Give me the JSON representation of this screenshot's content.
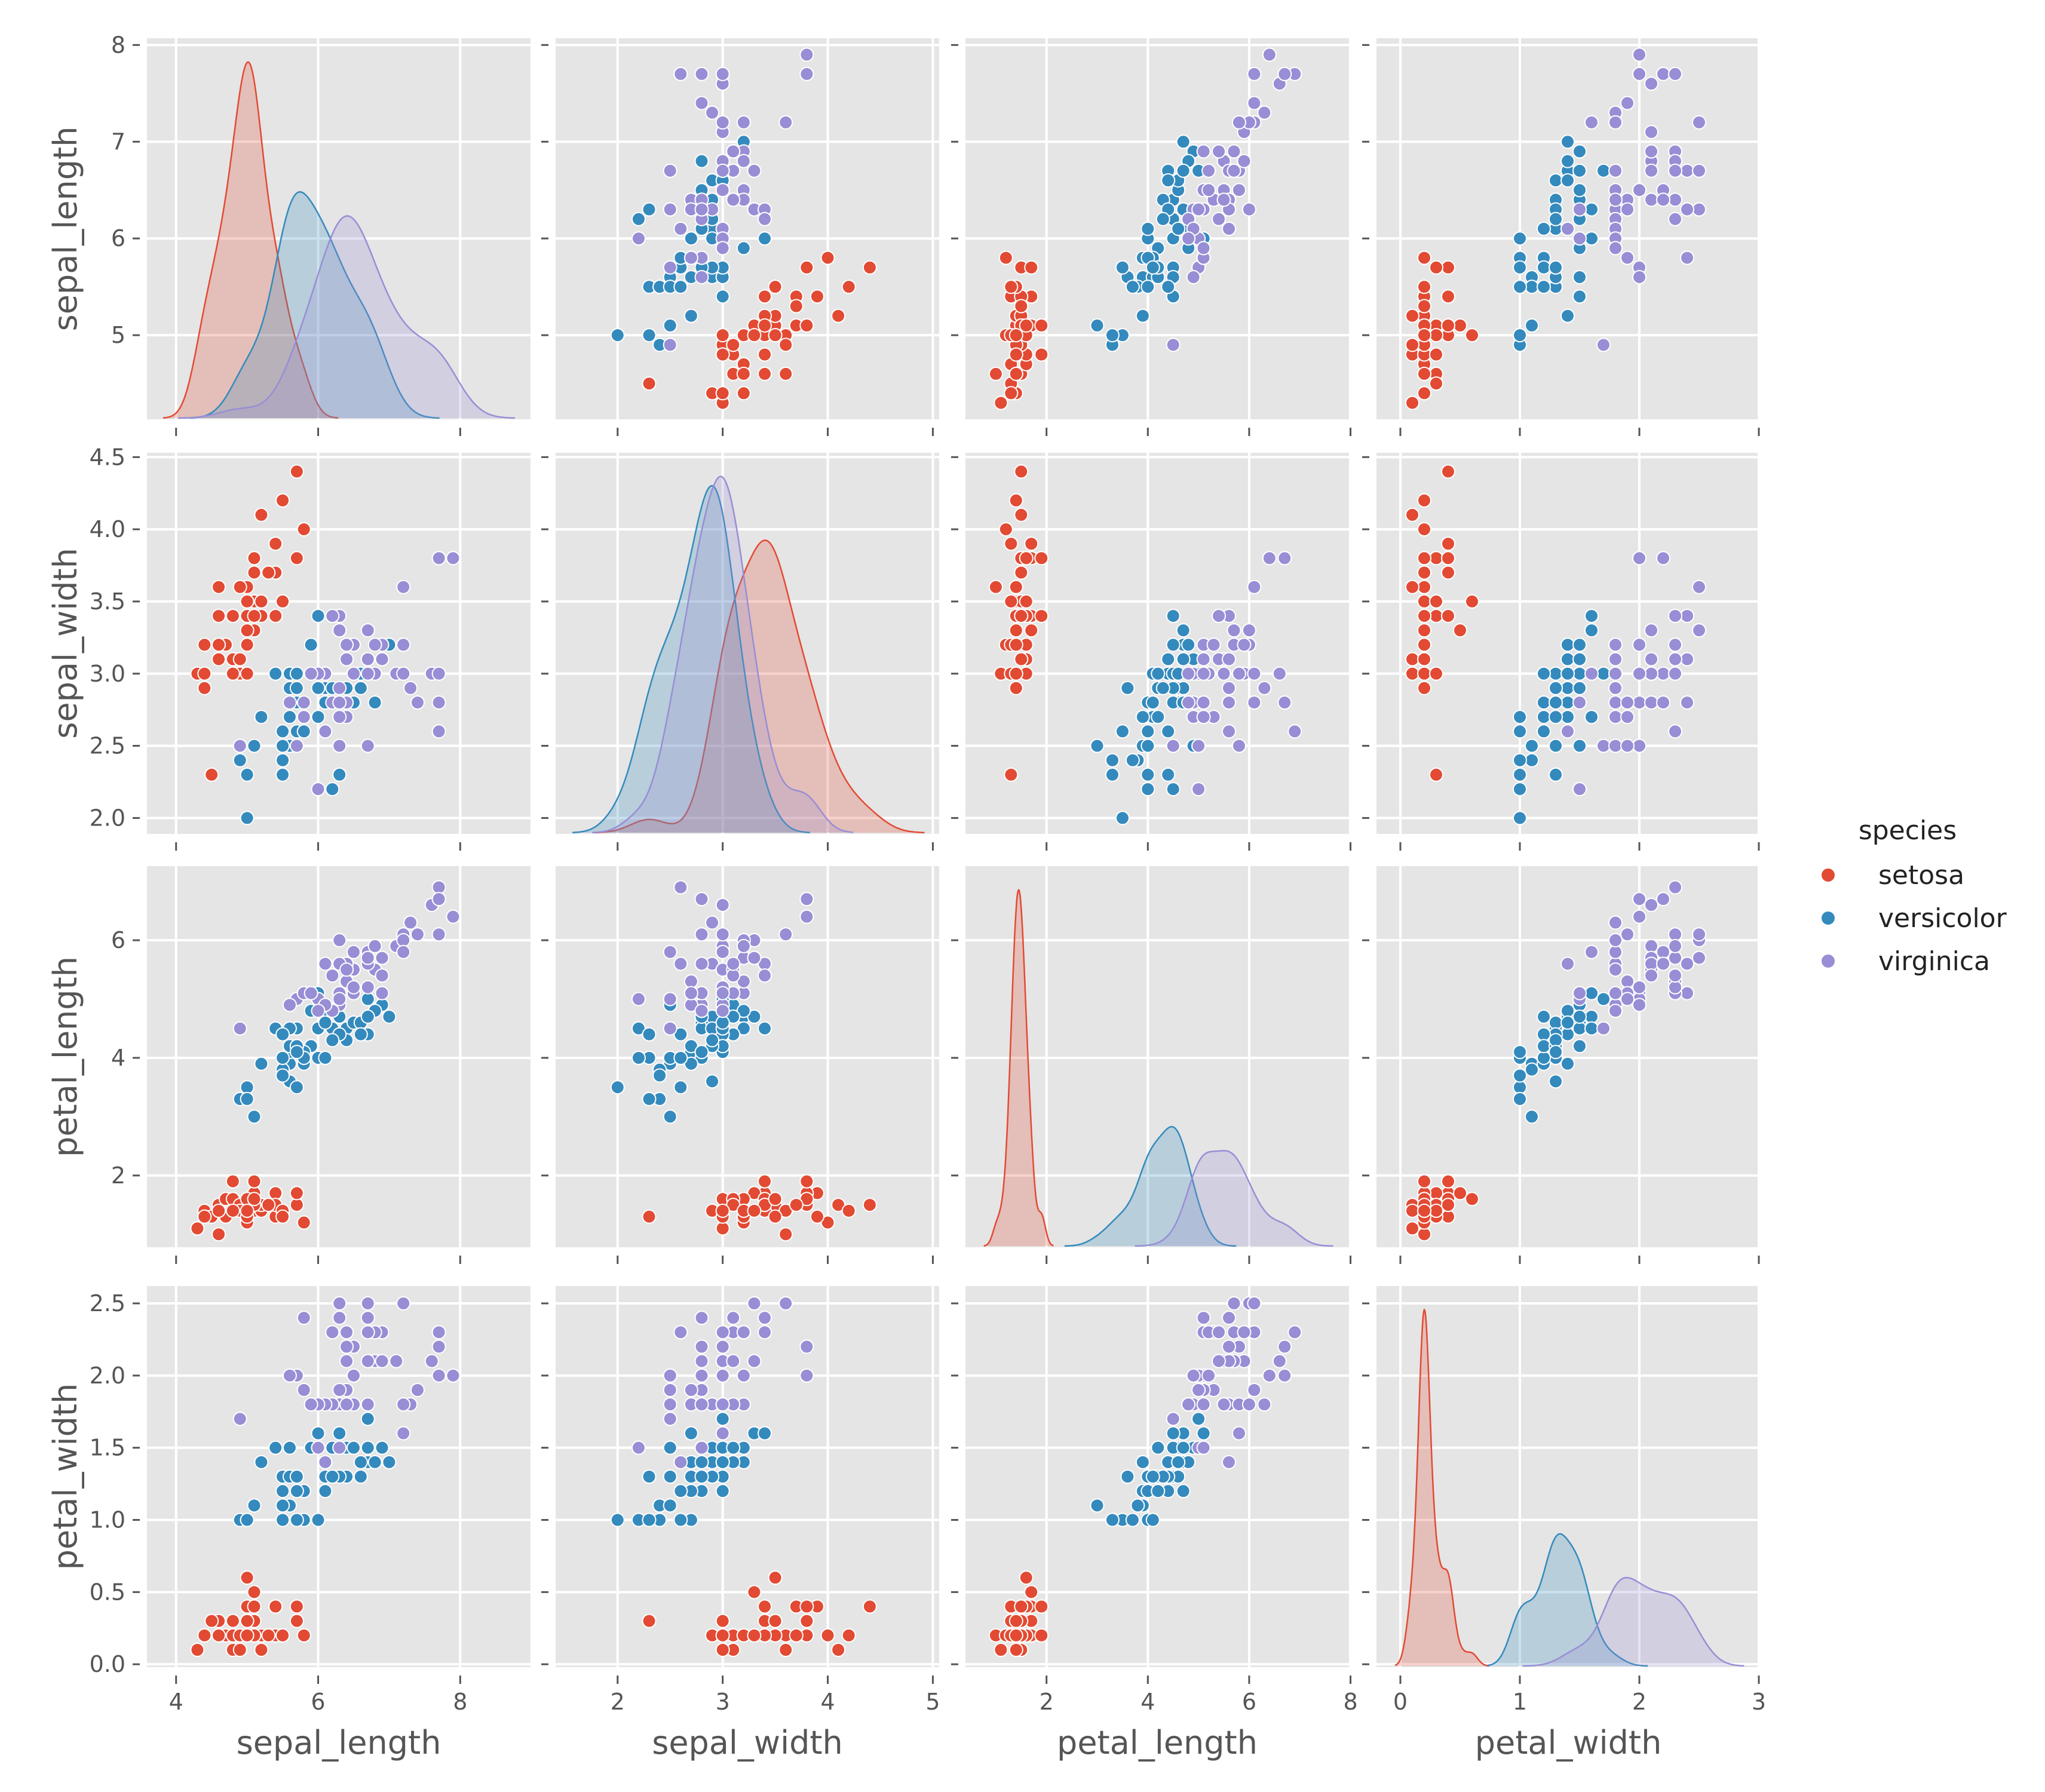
{
  "chart_data": {
    "type": "scatter",
    "title": "",
    "kind": "pairplot",
    "diag_kind": "kde",
    "grid": true,
    "variables": [
      {
        "name": "sepal_length",
        "xlim": [
          3.59,
          8.99
        ],
        "ylim": [
          4.13,
          8.07
        ],
        "xticks": [
          4,
          6,
          8
        ],
        "xtick_labels": [
          "4",
          "6",
          "8"
        ],
        "yticks": [
          5,
          6,
          7,
          8
        ],
        "ytick_labels": [
          "5",
          "6",
          "7",
          "8"
        ]
      },
      {
        "name": "sepal_width",
        "xlim": [
          1.41,
          5.06
        ],
        "ylim": [
          1.89,
          4.53
        ],
        "xticks": [
          2,
          3,
          4,
          5
        ],
        "xtick_labels": [
          "2",
          "3",
          "4",
          "5"
        ],
        "yticks": [
          2.0,
          2.5,
          3.0,
          3.5,
          4.0,
          4.5
        ],
        "ytick_labels": [
          "2.0",
          "2.5",
          "3.0",
          "3.5",
          "4.0",
          "4.5"
        ]
      },
      {
        "name": "petal_length",
        "xlim": [
          0.4,
          7.97
        ],
        "ylim": [
          0.78,
          7.26
        ],
        "xticks": [
          2,
          4,
          6,
          8
        ],
        "xtick_labels": [
          "2",
          "4",
          "6",
          "8"
        ],
        "yticks": [
          2,
          4,
          6
        ],
        "ytick_labels": [
          "2",
          "4",
          "6"
        ]
      },
      {
        "name": "petal_width",
        "xlim": [
          -0.2,
          3.01
        ],
        "ylim": [
          -0.02,
          2.62
        ],
        "xticks": [
          0,
          1,
          2,
          3
        ],
        "xtick_labels": [
          "0",
          "1",
          "2",
          "3"
        ],
        "yticks": [
          0.0,
          0.5,
          1.0,
          1.5,
          2.0,
          2.5
        ],
        "ytick_labels": [
          "0.0",
          "0.5",
          "1.0",
          "1.5",
          "2.0",
          "2.5"
        ]
      }
    ],
    "legend": {
      "title": "species",
      "placement": "right",
      "entries": [
        {
          "label": "setosa",
          "color": "#E24A33"
        },
        {
          "label": "versicolor",
          "color": "#348ABD"
        },
        {
          "label": "virginica",
          "color": "#988ED5"
        }
      ]
    },
    "series": [
      {
        "name": "setosa",
        "points": [
          [
            5.1,
            3.5,
            1.4,
            0.2
          ],
          [
            4.9,
            3.0,
            1.4,
            0.2
          ],
          [
            4.7,
            3.2,
            1.3,
            0.2
          ],
          [
            4.6,
            3.1,
            1.5,
            0.2
          ],
          [
            5.0,
            3.6,
            1.4,
            0.2
          ],
          [
            5.4,
            3.9,
            1.7,
            0.4
          ],
          [
            4.6,
            3.4,
            1.4,
            0.3
          ],
          [
            5.0,
            3.4,
            1.5,
            0.2
          ],
          [
            4.4,
            2.9,
            1.4,
            0.2
          ],
          [
            4.9,
            3.1,
            1.5,
            0.1
          ],
          [
            5.4,
            3.7,
            1.5,
            0.2
          ],
          [
            4.8,
            3.4,
            1.6,
            0.2
          ],
          [
            4.8,
            3.0,
            1.4,
            0.1
          ],
          [
            4.3,
            3.0,
            1.1,
            0.1
          ],
          [
            5.8,
            4.0,
            1.2,
            0.2
          ],
          [
            5.7,
            4.4,
            1.5,
            0.4
          ],
          [
            5.4,
            3.9,
            1.3,
            0.4
          ],
          [
            5.1,
            3.5,
            1.4,
            0.3
          ],
          [
            5.7,
            3.8,
            1.7,
            0.3
          ],
          [
            5.1,
            3.8,
            1.5,
            0.3
          ],
          [
            5.4,
            3.4,
            1.7,
            0.2
          ],
          [
            5.1,
            3.7,
            1.5,
            0.4
          ],
          [
            4.6,
            3.6,
            1.0,
            0.2
          ],
          [
            5.1,
            3.3,
            1.7,
            0.5
          ],
          [
            4.8,
            3.4,
            1.9,
            0.2
          ],
          [
            5.0,
            3.0,
            1.6,
            0.2
          ],
          [
            5.0,
            3.4,
            1.6,
            0.4
          ],
          [
            5.2,
            3.5,
            1.5,
            0.2
          ],
          [
            5.2,
            3.4,
            1.4,
            0.2
          ],
          [
            4.7,
            3.2,
            1.6,
            0.2
          ],
          [
            4.8,
            3.1,
            1.6,
            0.2
          ],
          [
            5.4,
            3.4,
            1.5,
            0.4
          ],
          [
            5.2,
            4.1,
            1.5,
            0.1
          ],
          [
            5.5,
            4.2,
            1.4,
            0.2
          ],
          [
            4.9,
            3.1,
            1.5,
            0.2
          ],
          [
            5.0,
            3.2,
            1.2,
            0.2
          ],
          [
            5.5,
            3.5,
            1.3,
            0.2
          ],
          [
            4.9,
            3.6,
            1.4,
            0.1
          ],
          [
            4.4,
            3.0,
            1.3,
            0.2
          ],
          [
            5.1,
            3.4,
            1.5,
            0.2
          ],
          [
            5.0,
            3.5,
            1.3,
            0.3
          ],
          [
            4.5,
            2.3,
            1.3,
            0.3
          ],
          [
            4.4,
            3.2,
            1.3,
            0.2
          ],
          [
            5.0,
            3.5,
            1.6,
            0.6
          ],
          [
            5.1,
            3.8,
            1.9,
            0.4
          ],
          [
            4.8,
            3.0,
            1.4,
            0.3
          ],
          [
            5.1,
            3.8,
            1.6,
            0.2
          ],
          [
            4.6,
            3.2,
            1.4,
            0.2
          ],
          [
            5.3,
            3.7,
            1.5,
            0.2
          ],
          [
            5.0,
            3.3,
            1.4,
            0.2
          ]
        ]
      },
      {
        "name": "versicolor",
        "points": [
          [
            7.0,
            3.2,
            4.7,
            1.4
          ],
          [
            6.4,
            3.2,
            4.5,
            1.5
          ],
          [
            6.9,
            3.1,
            4.9,
            1.5
          ],
          [
            5.5,
            2.3,
            4.0,
            1.3
          ],
          [
            6.5,
            2.8,
            4.6,
            1.5
          ],
          [
            5.7,
            2.8,
            4.5,
            1.3
          ],
          [
            6.3,
            3.3,
            4.7,
            1.6
          ],
          [
            4.9,
            2.4,
            3.3,
            1.0
          ],
          [
            6.6,
            2.9,
            4.6,
            1.3
          ],
          [
            5.2,
            2.7,
            3.9,
            1.4
          ],
          [
            5.0,
            2.0,
            3.5,
            1.0
          ],
          [
            5.9,
            3.0,
            4.2,
            1.5
          ],
          [
            6.0,
            2.2,
            4.0,
            1.0
          ],
          [
            6.1,
            2.9,
            4.7,
            1.4
          ],
          [
            5.6,
            2.9,
            3.6,
            1.3
          ],
          [
            6.7,
            3.1,
            4.4,
            1.4
          ],
          [
            5.6,
            3.0,
            4.5,
            1.5
          ],
          [
            5.8,
            2.7,
            4.1,
            1.0
          ],
          [
            6.2,
            2.2,
            4.5,
            1.5
          ],
          [
            5.6,
            2.5,
            3.9,
            1.1
          ],
          [
            5.9,
            3.2,
            4.8,
            1.8
          ],
          [
            6.1,
            2.8,
            4.0,
            1.3
          ],
          [
            6.3,
            2.5,
            4.9,
            1.5
          ],
          [
            6.1,
            2.8,
            4.7,
            1.2
          ],
          [
            6.4,
            2.9,
            4.3,
            1.3
          ],
          [
            6.6,
            3.0,
            4.4,
            1.4
          ],
          [
            6.8,
            2.8,
            4.8,
            1.4
          ],
          [
            6.7,
            3.0,
            5.0,
            1.7
          ],
          [
            6.0,
            2.9,
            4.5,
            1.5
          ],
          [
            5.7,
            2.6,
            3.5,
            1.0
          ],
          [
            5.5,
            2.4,
            3.8,
            1.1
          ],
          [
            5.5,
            2.4,
            3.7,
            1.0
          ],
          [
            5.8,
            2.7,
            3.9,
            1.2
          ],
          [
            6.0,
            2.7,
            5.1,
            1.6
          ],
          [
            5.4,
            3.0,
            4.5,
            1.5
          ],
          [
            6.0,
            3.4,
            4.5,
            1.6
          ],
          [
            6.7,
            3.1,
            4.7,
            1.5
          ],
          [
            6.3,
            2.3,
            4.4,
            1.3
          ],
          [
            5.6,
            3.0,
            4.1,
            1.3
          ],
          [
            5.5,
            2.5,
            4.0,
            1.3
          ],
          [
            5.5,
            2.6,
            4.4,
            1.2
          ],
          [
            6.1,
            3.0,
            4.6,
            1.4
          ],
          [
            5.8,
            2.6,
            4.0,
            1.2
          ],
          [
            5.0,
            2.3,
            3.3,
            1.0
          ],
          [
            5.6,
            2.7,
            4.2,
            1.3
          ],
          [
            5.7,
            3.0,
            4.2,
            1.2
          ],
          [
            5.7,
            2.9,
            4.2,
            1.3
          ],
          [
            6.2,
            2.9,
            4.3,
            1.3
          ],
          [
            5.1,
            2.5,
            3.0,
            1.1
          ],
          [
            5.7,
            2.8,
            4.1,
            1.3
          ]
        ]
      },
      {
        "name": "virginica",
        "points": [
          [
            6.3,
            3.3,
            6.0,
            2.5
          ],
          [
            5.8,
            2.7,
            5.1,
            1.9
          ],
          [
            7.1,
            3.0,
            5.9,
            2.1
          ],
          [
            6.3,
            2.9,
            5.6,
            1.8
          ],
          [
            6.5,
            3.0,
            5.8,
            2.2
          ],
          [
            7.6,
            3.0,
            6.6,
            2.1
          ],
          [
            4.9,
            2.5,
            4.5,
            1.7
          ],
          [
            7.3,
            2.9,
            6.3,
            1.8
          ],
          [
            6.7,
            2.5,
            5.8,
            1.8
          ],
          [
            7.2,
            3.6,
            6.1,
            2.5
          ],
          [
            6.5,
            3.2,
            5.1,
            2.0
          ],
          [
            6.4,
            2.7,
            5.3,
            1.9
          ],
          [
            6.8,
            3.0,
            5.5,
            2.1
          ],
          [
            5.7,
            2.5,
            5.0,
            2.0
          ],
          [
            5.8,
            2.8,
            5.1,
            2.4
          ],
          [
            6.4,
            3.2,
            5.3,
            2.3
          ],
          [
            6.5,
            3.0,
            5.5,
            1.8
          ],
          [
            7.7,
            3.8,
            6.7,
            2.2
          ],
          [
            7.7,
            2.6,
            6.9,
            2.3
          ],
          [
            6.0,
            2.2,
            5.0,
            1.5
          ],
          [
            6.9,
            3.2,
            5.7,
            2.3
          ],
          [
            5.6,
            2.8,
            4.9,
            2.0
          ],
          [
            7.7,
            2.8,
            6.7,
            2.0
          ],
          [
            6.3,
            2.7,
            4.9,
            1.8
          ],
          [
            6.7,
            3.3,
            5.7,
            2.1
          ],
          [
            7.2,
            3.2,
            6.0,
            1.8
          ],
          [
            6.2,
            2.8,
            4.8,
            1.8
          ],
          [
            6.1,
            3.0,
            4.9,
            1.8
          ],
          [
            6.4,
            2.8,
            5.6,
            2.1
          ],
          [
            7.2,
            3.0,
            5.8,
            1.6
          ],
          [
            7.4,
            2.8,
            6.1,
            1.9
          ],
          [
            7.9,
            3.8,
            6.4,
            2.0
          ],
          [
            6.4,
            2.8,
            5.6,
            2.2
          ],
          [
            6.3,
            2.8,
            5.1,
            1.5
          ],
          [
            6.1,
            2.6,
            5.6,
            1.4
          ],
          [
            7.7,
            3.0,
            6.1,
            2.3
          ],
          [
            6.3,
            3.4,
            5.6,
            2.4
          ],
          [
            6.4,
            3.1,
            5.5,
            1.8
          ],
          [
            6.0,
            3.0,
            4.8,
            1.8
          ],
          [
            6.9,
            3.1,
            5.4,
            2.1
          ],
          [
            6.7,
            3.1,
            5.6,
            2.4
          ],
          [
            6.9,
            3.1,
            5.1,
            2.3
          ],
          [
            5.8,
            2.7,
            5.1,
            1.9
          ],
          [
            6.8,
            3.2,
            5.9,
            2.3
          ],
          [
            6.7,
            3.3,
            5.7,
            2.5
          ],
          [
            6.7,
            3.0,
            5.2,
            2.3
          ],
          [
            6.3,
            2.5,
            5.0,
            1.9
          ],
          [
            6.5,
            3.0,
            5.2,
            2.0
          ],
          [
            6.2,
            3.4,
            5.4,
            2.3
          ],
          [
            5.9,
            3.0,
            5.1,
            1.8
          ]
        ]
      }
    ]
  }
}
